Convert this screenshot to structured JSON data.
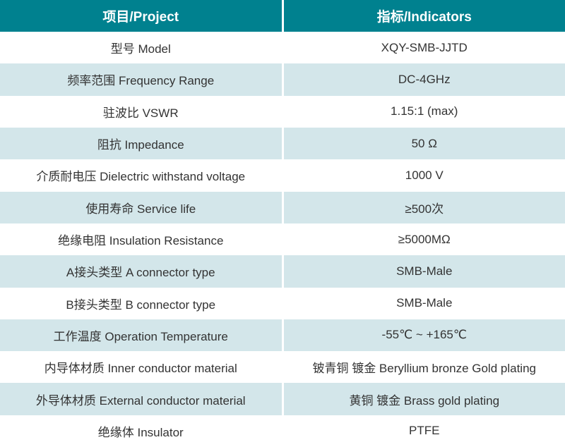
{
  "table": {
    "header": {
      "project": "项目/Project",
      "indicators": "指标/Indicators"
    },
    "rows": [
      {
        "project": "型号 Model",
        "indicator": "XQY-SMB-JJTD"
      },
      {
        "project": "频率范围 Frequency Range",
        "indicator": "DC-4GHz"
      },
      {
        "project": "驻波比 VSWR",
        "indicator": "1.15:1 (max)"
      },
      {
        "project": "阻抗 Impedance",
        "indicator": "50 Ω"
      },
      {
        "project": "介质耐电压 Dielectric withstand voltage",
        "indicator": "1000 V"
      },
      {
        "project": "使用寿命 Service life",
        "indicator": "≥500次"
      },
      {
        "project": "绝缘电阻 Insulation Resistance",
        "indicator": "≥5000MΩ"
      },
      {
        "project": "A接头类型 A connector type",
        "indicator": "SMB-Male"
      },
      {
        "project": "B接头类型 B connector type",
        "indicator": "SMB-Male"
      },
      {
        "project": "工作温度 Operation Temperature",
        "indicator": "-55℃ ~ +165℃"
      },
      {
        "project": "内导体材质 Inner conductor material",
        "indicator": "铍青铜 镀金 Beryllium bronze Gold plating"
      },
      {
        "project": "外导体材质 External conductor material",
        "indicator": "黄铜 镀金 Brass gold plating"
      },
      {
        "project": "绝缘体 Insulator",
        "indicator": "PTFE"
      }
    ],
    "colors": {
      "header_bg": "#00818F",
      "header_text": "#FFFFFF",
      "stripe_bg": "#D3E6EA",
      "row_bg": "#FFFFFF",
      "body_text": "#333333"
    }
  }
}
